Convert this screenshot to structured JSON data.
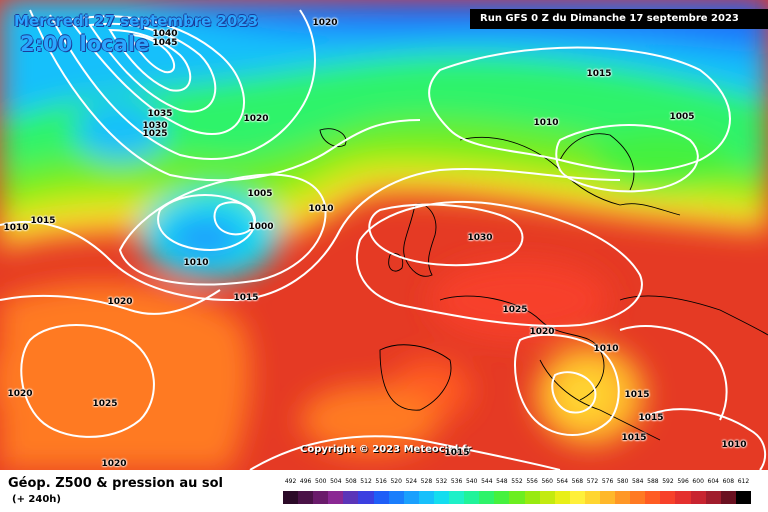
{
  "header": {
    "date": "Mercredi 27 septembre 2023",
    "time": "2:00 locale",
    "run": "Run GFS 0 Z du Dimanche 17 septembre 2023"
  },
  "copyright": "Copyright © 2023 Meteociel.fr",
  "footer": {
    "title": "Géop. Z500 & pression au sol",
    "subtitle": "(+ 240h)"
  },
  "scale": {
    "values": [
      "492",
      "496",
      "500",
      "504",
      "508",
      "512",
      "516",
      "520",
      "524",
      "528",
      "532",
      "536",
      "540",
      "544",
      "548",
      "552",
      "556",
      "560",
      "564",
      "568",
      "572",
      "576",
      "580",
      "584",
      "588",
      "592",
      "596",
      "600",
      "604",
      "608",
      "612"
    ],
    "colors": [
      "#2b0a28",
      "#4a1247",
      "#6a1b6b",
      "#8a2893",
      "#5b35b8",
      "#3b3fe0",
      "#1f5ef7",
      "#1a7efc",
      "#1aa0fd",
      "#17c0fb",
      "#14ddef",
      "#1ef0c8",
      "#20f39a",
      "#2ef36a",
      "#45f13e",
      "#6cee20",
      "#98ea10",
      "#c3ea10",
      "#e8ef18",
      "#fff03a",
      "#ffd630",
      "#ffb82a",
      "#ff9726",
      "#ff7a22",
      "#ff5c22",
      "#f7412a",
      "#e4302e",
      "#c82430",
      "#a01c2c",
      "#6a1020",
      "#000000"
    ]
  },
  "pressure_labels": [
    "1020",
    "1040",
    "1045",
    "1035",
    "1030",
    "1025",
    "1020",
    "1015",
    "1005",
    "1000",
    "1010",
    "1010",
    "1015",
    "1010",
    "1020",
    "1020",
    "1015",
    "1010",
    "1025",
    "1020",
    "1025",
    "1030",
    "1020",
    "1010",
    "1015",
    "1015",
    "1015",
    "1015",
    "1010",
    "1005"
  ]
}
